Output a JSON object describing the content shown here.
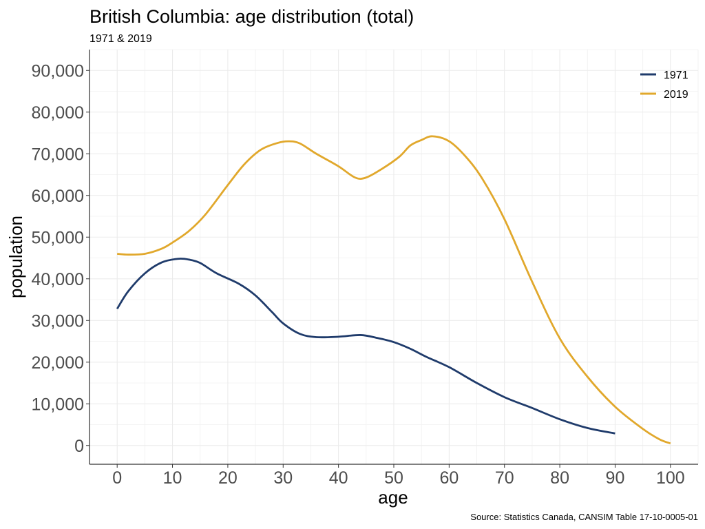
{
  "chart_data": {
    "type": "line",
    "title": "British Columbia: age distribution (total)",
    "subtitle": "1971 & 2019",
    "caption": "Source: Statistics Canada, CANSIM Table 17-10-0005-01",
    "xlabel": "age",
    "ylabel": "population",
    "xlim": [
      -5,
      105
    ],
    "ylim": [
      -4500,
      95000
    ],
    "x_ticks": [
      0,
      10,
      20,
      30,
      40,
      50,
      60,
      70,
      80,
      90,
      100
    ],
    "x_tick_labels": [
      "0",
      "10",
      "20",
      "30",
      "40",
      "50",
      "60",
      "70",
      "80",
      "90",
      "100"
    ],
    "y_ticks": [
      0,
      10000,
      20000,
      30000,
      40000,
      50000,
      60000,
      70000,
      80000,
      90000
    ],
    "y_tick_labels": [
      "0",
      "10,000",
      "20,000",
      "30,000",
      "40,000",
      "50,000",
      "60,000",
      "70,000",
      "80,000",
      "90,000"
    ],
    "grid": true,
    "legend_position": "top-right",
    "series": [
      {
        "name": "1971",
        "color": "#1f3b6b",
        "x": [
          0,
          2,
          5,
          8,
          11,
          13,
          15,
          18,
          22,
          25,
          28,
          30,
          33,
          36,
          40,
          44,
          47,
          50,
          53,
          56,
          60,
          65,
          70,
          75,
          80,
          85,
          90
        ],
        "y": [
          32800,
          37000,
          41300,
          43900,
          44800,
          44600,
          43800,
          41300,
          38800,
          36000,
          32000,
          29300,
          26800,
          26000,
          26100,
          26500,
          25800,
          24800,
          23200,
          21200,
          18800,
          15000,
          11600,
          9000,
          6300,
          4200,
          2900
        ]
      },
      {
        "name": "2019",
        "color": "#e1a82c",
        "x": [
          0,
          2,
          5,
          8,
          10,
          13,
          16,
          20,
          23,
          26,
          29,
          31,
          33,
          36,
          40,
          43,
          45,
          48,
          51,
          53,
          55,
          57,
          60,
          63,
          66,
          70,
          75,
          80,
          85,
          90,
          95,
          98,
          100
        ],
        "y": [
          46000,
          45800,
          46000,
          47200,
          48700,
          51500,
          55500,
          62500,
          67500,
          71000,
          72600,
          73000,
          72500,
          70000,
          67000,
          64300,
          64300,
          66500,
          69300,
          72000,
          73300,
          74200,
          73000,
          69300,
          64000,
          54300,
          39300,
          25700,
          16500,
          9300,
          4000,
          1500,
          500
        ]
      }
    ]
  }
}
